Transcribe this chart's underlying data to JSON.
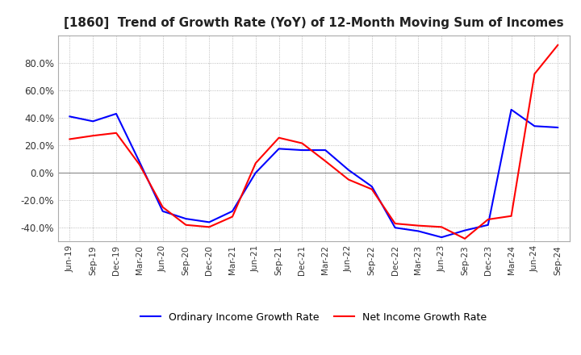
{
  "title": "[1860]  Trend of Growth Rate (YoY) of 12-Month Moving Sum of Incomes",
  "title_fontsize": 11,
  "x_labels": [
    "Jun-19",
    "Sep-19",
    "Dec-19",
    "Mar-20",
    "Jun-20",
    "Sep-20",
    "Dec-20",
    "Mar-21",
    "Jun-21",
    "Sep-21",
    "Dec-21",
    "Mar-22",
    "Jun-22",
    "Sep-22",
    "Dec-22",
    "Mar-23",
    "Jun-23",
    "Sep-23",
    "Dec-23",
    "Mar-24",
    "Jun-24",
    "Sep-24"
  ],
  "ordinary_income": [
    0.41,
    0.375,
    0.43,
    0.08,
    -0.28,
    -0.335,
    -0.36,
    -0.28,
    0.0,
    0.175,
    0.165,
    0.165,
    0.02,
    -0.1,
    -0.4,
    -0.425,
    -0.47,
    -0.42,
    -0.38,
    0.46,
    0.34,
    0.33
  ],
  "net_income": [
    0.245,
    0.27,
    0.29,
    0.06,
    -0.25,
    -0.38,
    -0.395,
    -0.32,
    0.07,
    0.255,
    0.215,
    0.085,
    -0.05,
    -0.12,
    -0.37,
    -0.385,
    -0.395,
    -0.48,
    -0.34,
    -0.315,
    0.72,
    0.93
  ],
  "ylim": [
    -0.5,
    1.0
  ],
  "yticks": [
    -0.4,
    -0.2,
    0.0,
    0.2,
    0.4,
    0.6,
    0.8
  ],
  "ordinary_color": "#0000FF",
  "net_color": "#FF0000",
  "grid_color": "#AAAAAA",
  "background_color": "#FFFFFF",
  "legend_labels": [
    "Ordinary Income Growth Rate",
    "Net Income Growth Rate"
  ]
}
